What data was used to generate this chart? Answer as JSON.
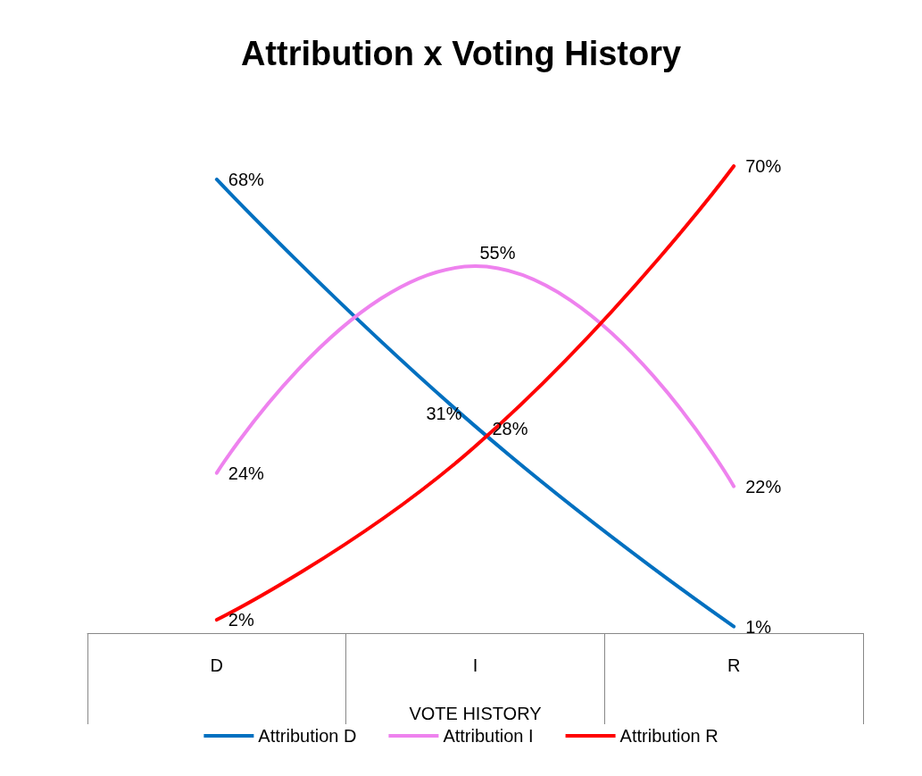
{
  "chart_data": {
    "type": "line",
    "title": "Attribution x Voting History",
    "xlabel": "VOTE HISTORY",
    "categories": [
      "D",
      "I",
      "R"
    ],
    "series": [
      {
        "name": "Attribution D",
        "color": "#0070c0",
        "values": [
          68,
          31,
          1
        ],
        "value_labels": [
          "68%",
          "31%",
          "1%"
        ]
      },
      {
        "name": "Attribution I",
        "color": "#ee82ee",
        "values": [
          24,
          55,
          22
        ],
        "value_labels": [
          "24%",
          "55%",
          "22%"
        ]
      },
      {
        "name": "Attribution R",
        "color": "#ff0000",
        "values": [
          2,
          28,
          70
        ],
        "value_labels": [
          "2%",
          "28%",
          "70%"
        ]
      }
    ],
    "legend": "bottom",
    "grid": false,
    "marker": "none",
    "line_style": "solid"
  }
}
